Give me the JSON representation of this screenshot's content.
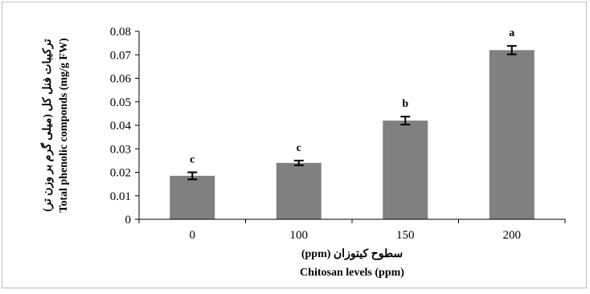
{
  "chart_data": {
    "type": "bar",
    "categories": [
      "0",
      "100",
      "150",
      "200"
    ],
    "values": [
      0.0185,
      0.024,
      0.042,
      0.072
    ],
    "errors": [
      0.0015,
      0.001,
      0.0017,
      0.0018
    ],
    "significance_letters": [
      "c",
      "c",
      "b",
      "a"
    ],
    "yticks": [
      "0",
      "0.01",
      "0.02",
      "0.03",
      "0.04",
      "0.05",
      "0.06",
      "0.07",
      "0.08"
    ],
    "ylim": [
      0,
      0.08
    ],
    "xlabel_fa": "سطوح کیتوزان (ppm)",
    "xlabel_en": "Chitosan levels (ppm)",
    "ylabel_fa": "ترکیبات فنل کل (میلی گرم بر وزن تر)",
    "ylabel_en": "Total phenolic componds (mg/g FW)",
    "bar_color": "#808080",
    "grid": false
  }
}
